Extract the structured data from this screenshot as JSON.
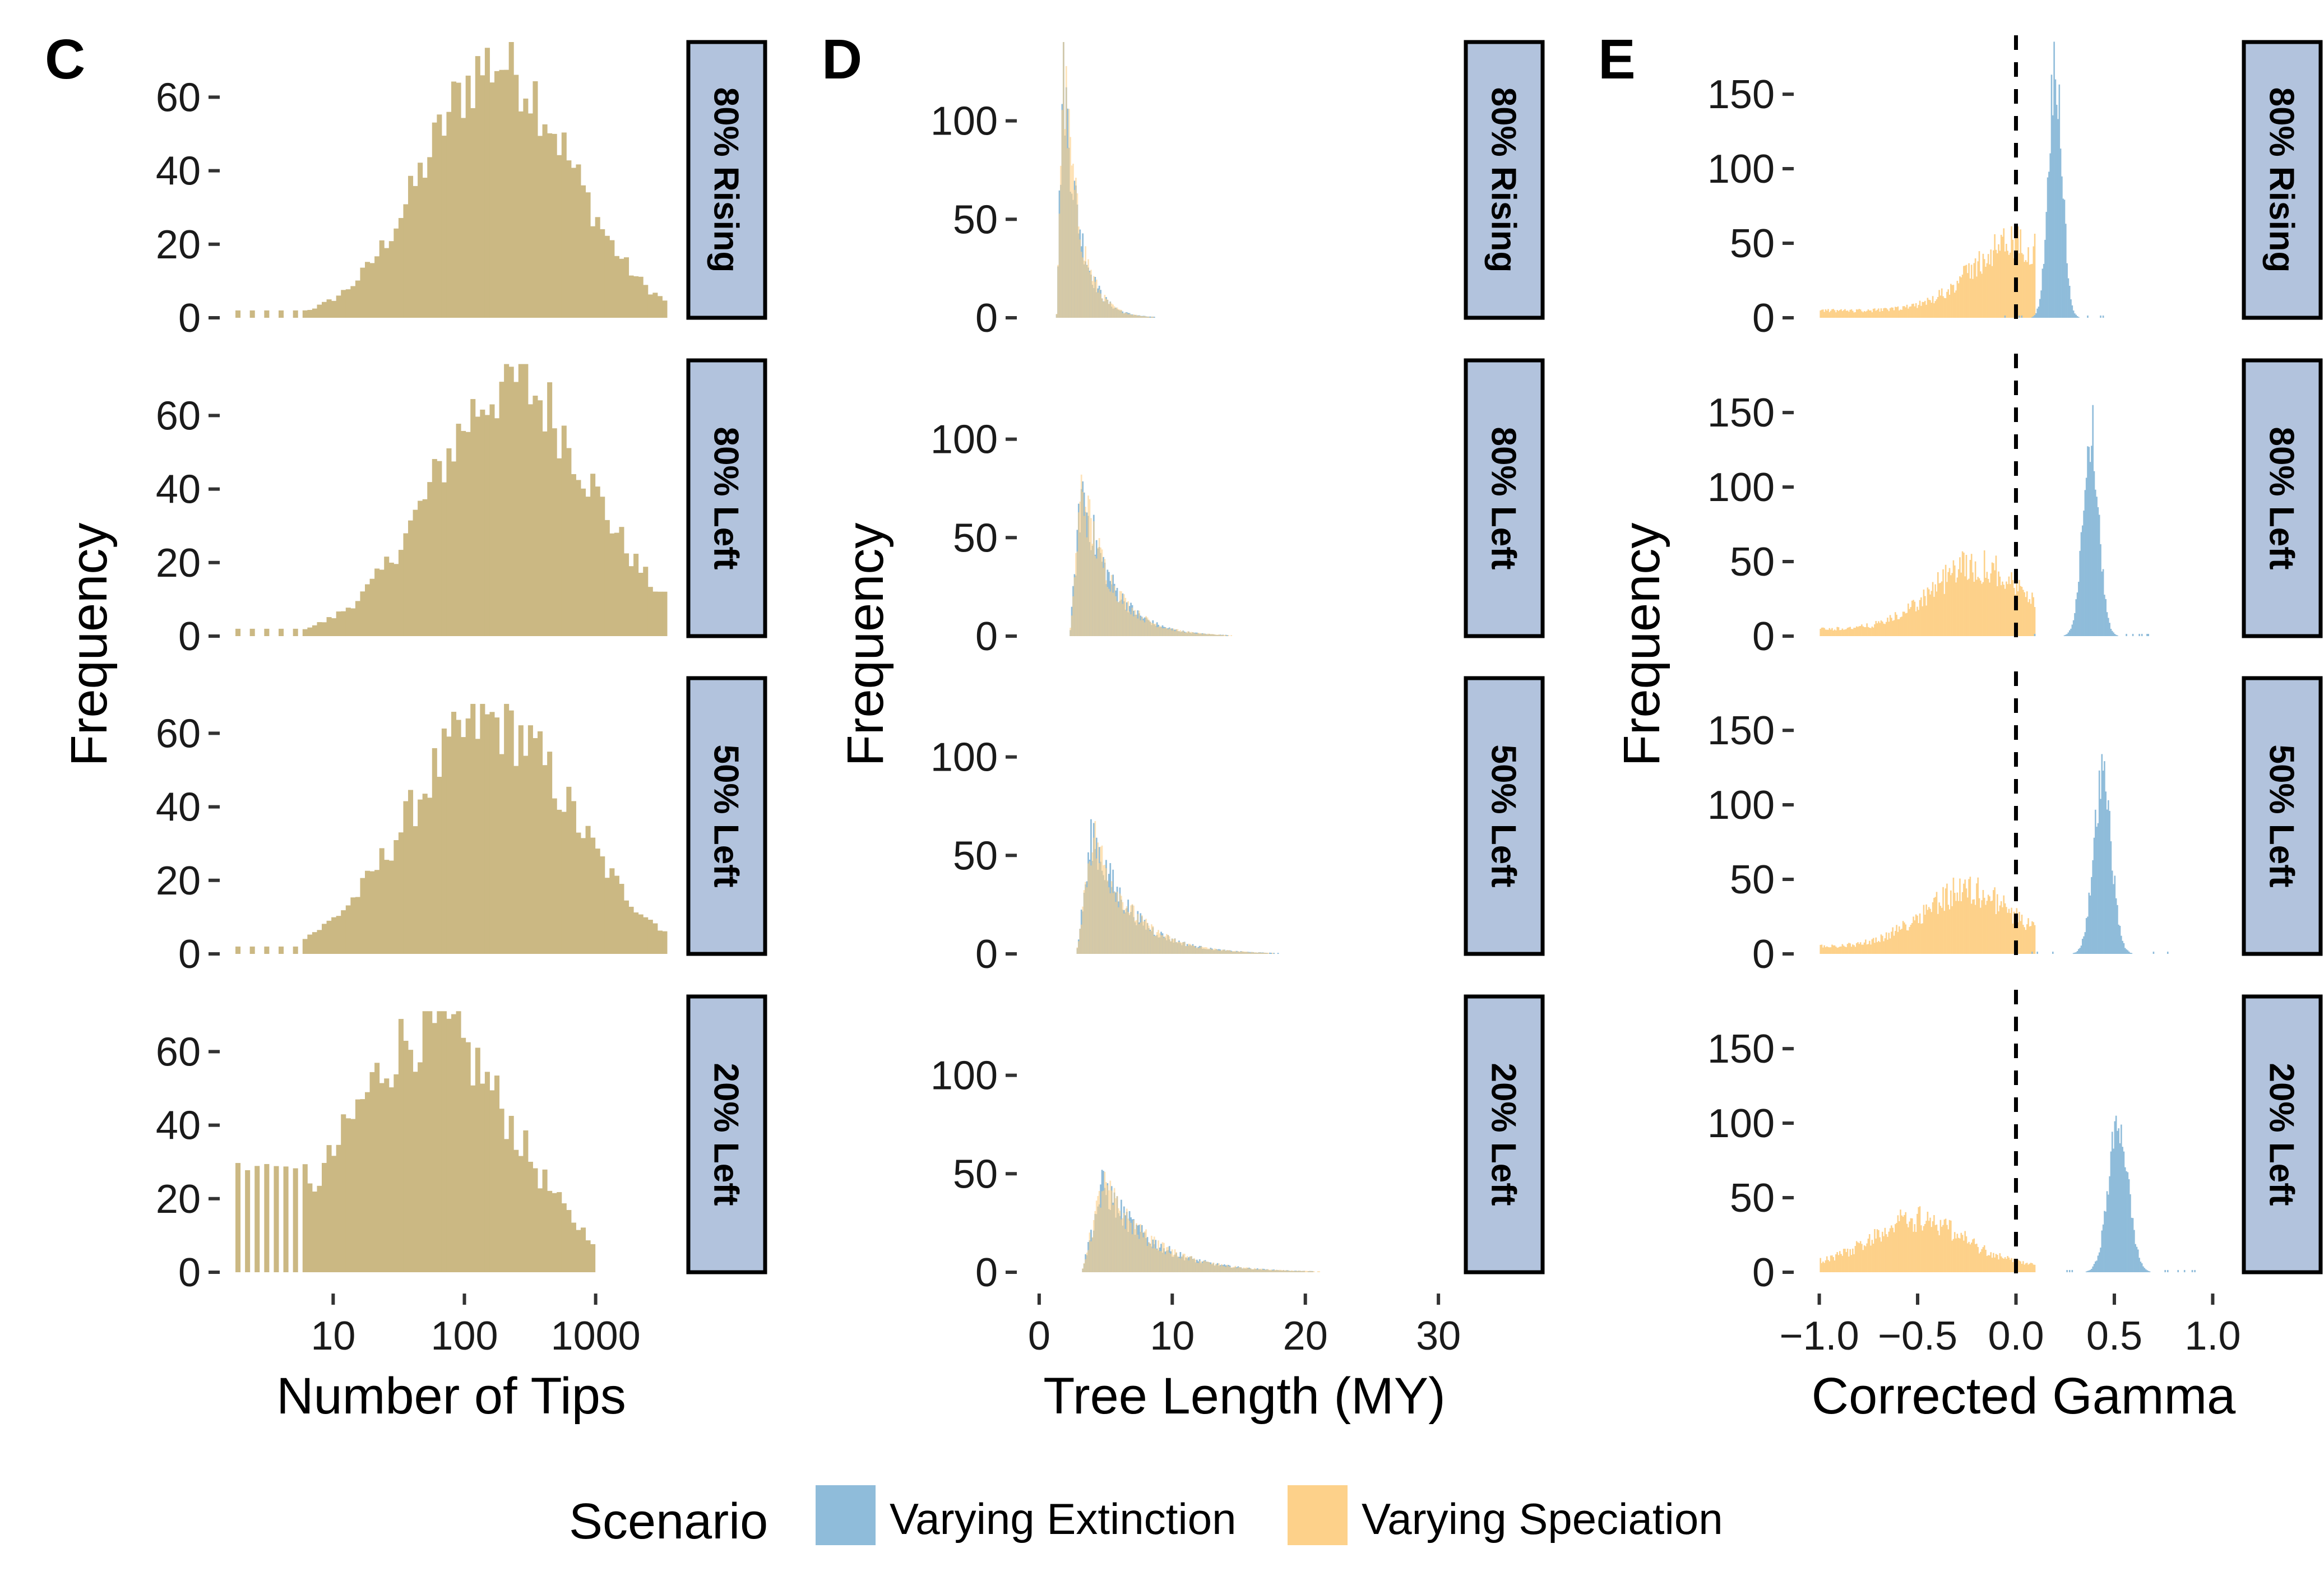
{
  "colors": {
    "extinction": "#8fbcda",
    "speciation": "#fdd18a",
    "overlap": "#cbb883",
    "strip_fill": "#b2c3dd",
    "strip_border": "#000000"
  },
  "facet_labels": [
    "80% Rising",
    "80% Left",
    "50% Left",
    "20% Left"
  ],
  "legend": {
    "title": "Scenario",
    "items": [
      {
        "label": "Varying Extinction",
        "color": "#8fbcda"
      },
      {
        "label": "Varying Speciation",
        "color": "#fdd18a"
      }
    ]
  },
  "chart_data": [
    {
      "type": "histogram",
      "panel": "C",
      "xlabel": "Number of Tips",
      "ylabel": "Frequency",
      "xscale": "log10",
      "xlim": [
        1.8,
        3500
      ],
      "ylim": [
        0,
        75
      ],
      "xticks": [
        10,
        100,
        1000
      ],
      "xtick_labels": [
        "10",
        "100",
        "1000"
      ],
      "yticks": [
        0,
        20,
        40,
        60
      ],
      "ytick_labels": [
        "0",
        "20",
        "40",
        "60"
      ],
      "facets": [
        {
          "label": "80% Rising",
          "peak": 75,
          "skew_center": 180,
          "spread": 0.55
        },
        {
          "label": "80% Left",
          "peak": 74,
          "skew_center": 230,
          "spread": 0.6
        },
        {
          "label": "50% Left",
          "peak": 68,
          "skew_center": 160,
          "spread": 0.62
        },
        {
          "label": "20% Left",
          "peak": 71,
          "skew_center": 55,
          "spread": 0.62
        }
      ]
    },
    {
      "type": "histogram",
      "panel": "D",
      "xlabel": "Tree Length (MY)",
      "ylabel": "Frequency",
      "xlim": [
        -0.5,
        30.5
      ],
      "ylim": [
        0,
        140
      ],
      "xticks": [
        0,
        10,
        20,
        30
      ],
      "xtick_labels": [
        "0",
        "10",
        "20",
        "30"
      ],
      "yticks": [
        0,
        50,
        100
      ],
      "ytick_labels": [
        "0",
        "50",
        "100"
      ],
      "facets": [
        {
          "label": "80% Rising",
          "onset": 1.3,
          "mode": 1.8,
          "peak": 133,
          "tail": 1.2
        },
        {
          "label": "80% Left",
          "onset": 2.3,
          "mode": 3.2,
          "peak": 78,
          "tail": 2.2
        },
        {
          "label": "50% Left",
          "onset": 2.8,
          "mode": 4.0,
          "peak": 63,
          "tail": 2.8
        },
        {
          "label": "20% Left",
          "onset": 3.2,
          "mode": 4.8,
          "peak": 46,
          "tail": 3.5
        }
      ]
    },
    {
      "type": "histogram",
      "panel": "E",
      "xlabel": "Corrected Gamma",
      "ylabel": "Frequency",
      "xlim": [
        -1.05,
        1.05
      ],
      "ylim": [
        0,
        185
      ],
      "xticks": [
        -1.0,
        -0.5,
        0.0,
        0.5,
        1.0
      ],
      "xtick_labels": [
        "−1.0",
        "−0.5",
        "0.0",
        "0.5",
        "1.0"
      ],
      "yticks": [
        0,
        50,
        100,
        150
      ],
      "ytick_labels": [
        "0",
        "50",
        "100",
        "150"
      ],
      "reference_line_x": 0.0,
      "facets": [
        {
          "label": "80% Rising",
          "extinction_mode": 0.2,
          "extinction_peak": 178,
          "extinction_sd": 0.035,
          "speciation_mode": 0.0,
          "speciation_peak": 48
        },
        {
          "label": "80% Left",
          "extinction_mode": 0.38,
          "extinction_peak": 146,
          "extinction_sd": 0.04,
          "speciation_mode": -0.2,
          "speciation_peak": 45
        },
        {
          "label": "50% Left",
          "extinction_mode": 0.44,
          "extinction_peak": 125,
          "extinction_sd": 0.045,
          "speciation_mode": -0.25,
          "speciation_peak": 40
        },
        {
          "label": "20% Left",
          "extinction_mode": 0.52,
          "extinction_peak": 105,
          "extinction_sd": 0.05,
          "speciation_mode": -0.5,
          "speciation_peak": 33
        }
      ]
    }
  ]
}
